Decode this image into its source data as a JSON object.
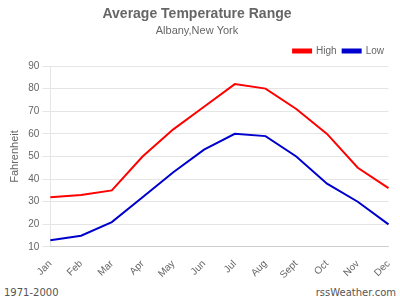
{
  "chart_data": {
    "type": "line",
    "title": "Average Temperature Range",
    "subtitle": "Albany,New York",
    "y_label": "Fahrenheit",
    "categories": [
      "Jan",
      "Feb",
      "Mar",
      "Apr",
      "May",
      "Jun",
      "Jul",
      "Aug",
      "Sept",
      "Oct",
      "Nov",
      "Dec"
    ],
    "series": [
      {
        "name": "High",
        "color": "#ff0000",
        "values": [
          32,
          33,
          35,
          50,
          62,
          72,
          82,
          80,
          71,
          60,
          45,
          36
        ]
      },
      {
        "name": "Low",
        "color": "#0000cc",
        "values": [
          13,
          15,
          21,
          32,
          43,
          53,
          60,
          59,
          50,
          38,
          30,
          20
        ]
      }
    ],
    "ylim": [
      10,
      90
    ],
    "yticks": [
      10,
      20,
      30,
      40,
      50,
      60,
      70,
      80,
      90
    ],
    "grid": true,
    "legend": "upper right",
    "annotations": [
      "1971-2000",
      "rssWeather.com"
    ]
  }
}
